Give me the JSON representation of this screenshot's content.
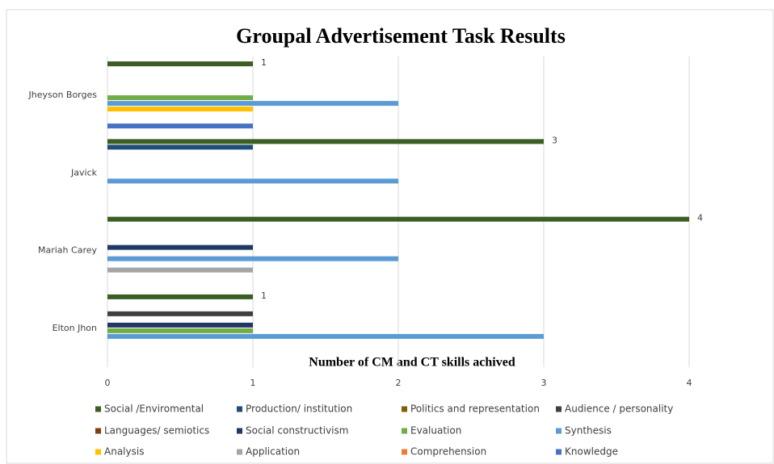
{
  "chart_data": {
    "type": "hbar",
    "title": "Groupal Advertisement Task Results",
    "x_label": "Number of CM and CT skills achived",
    "categories": [
      "Elton Jhon",
      "Mariah Carey",
      "Javick",
      "Jheyson Borges"
    ],
    "xlim": [
      0,
      4.5
    ],
    "xticks": [
      0,
      1,
      2,
      3,
      4
    ],
    "grid": true,
    "legend": "bottom",
    "series": [
      {
        "name": "Social /Enviromental",
        "color": "#3b5e23",
        "values": [
          1,
          4,
          3,
          1
        ],
        "data_labels": true
      },
      {
        "name": "Production/ institution",
        "color": "#1f4e79",
        "values": [
          0,
          0,
          1,
          0
        ]
      },
      {
        "name": "Politics and representation",
        "color": "#806000",
        "values": [
          0,
          0,
          0,
          0
        ]
      },
      {
        "name": "Audience / personality",
        "color": "#404040",
        "values": [
          1,
          0,
          0,
          0
        ]
      },
      {
        "name": "Languages/ semiotics",
        "color": "#843c0c",
        "values": [
          0,
          0,
          0,
          0
        ]
      },
      {
        "name": "Social constructivism",
        "color": "#203864",
        "values": [
          1,
          1,
          0,
          0
        ]
      },
      {
        "name": "Evaluation",
        "color": "#70ad47",
        "values": [
          1,
          0,
          0,
          1
        ]
      },
      {
        "name": "Synthesis",
        "color": "#5b9bd5",
        "values": [
          3,
          2,
          2,
          2
        ]
      },
      {
        "name": "Analysis",
        "color": "#ffc000",
        "values": [
          0,
          0,
          0,
          1
        ]
      },
      {
        "name": "Application",
        "color": "#a5a5a5",
        "values": [
          0,
          1,
          0,
          0
        ]
      },
      {
        "name": "Comprehension",
        "color": "#ed7d31",
        "values": [
          0,
          0,
          0,
          0
        ]
      },
      {
        "name": "Knowledge",
        "color": "#4472c4",
        "values": [
          0,
          0,
          0,
          1
        ]
      }
    ]
  }
}
